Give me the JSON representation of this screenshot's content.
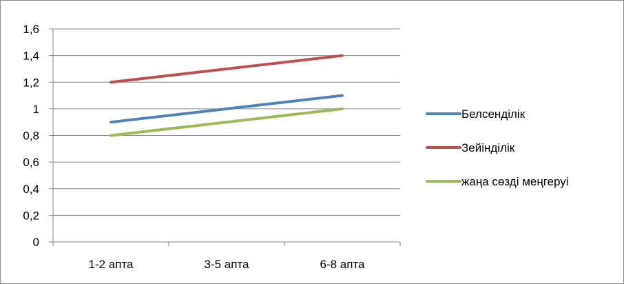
{
  "chart_data": {
    "type": "line",
    "categories": [
      "1-2 апта",
      "3-5 апта",
      "6-8 апта"
    ],
    "series": [
      {
        "name": "Белсенділік",
        "values": [
          0.9,
          1.0,
          1.1
        ],
        "color": "#4F81BD"
      },
      {
        "name": "Зейінділік",
        "values": [
          1.2,
          1.3,
          1.4
        ],
        "color": "#C0504D"
      },
      {
        "name": "жаңа сөзді меңгеруі",
        "values": [
          0.8,
          0.9,
          1.0
        ],
        "color": "#9BBB59"
      }
    ],
    "y_ticks": [
      "0",
      "0,2",
      "0,4",
      "0,6",
      "0,8",
      "1",
      "1,2",
      "1,4",
      "1,6"
    ],
    "ylim": [
      0,
      1.6
    ],
    "grid": true,
    "legend_position": "right"
  }
}
